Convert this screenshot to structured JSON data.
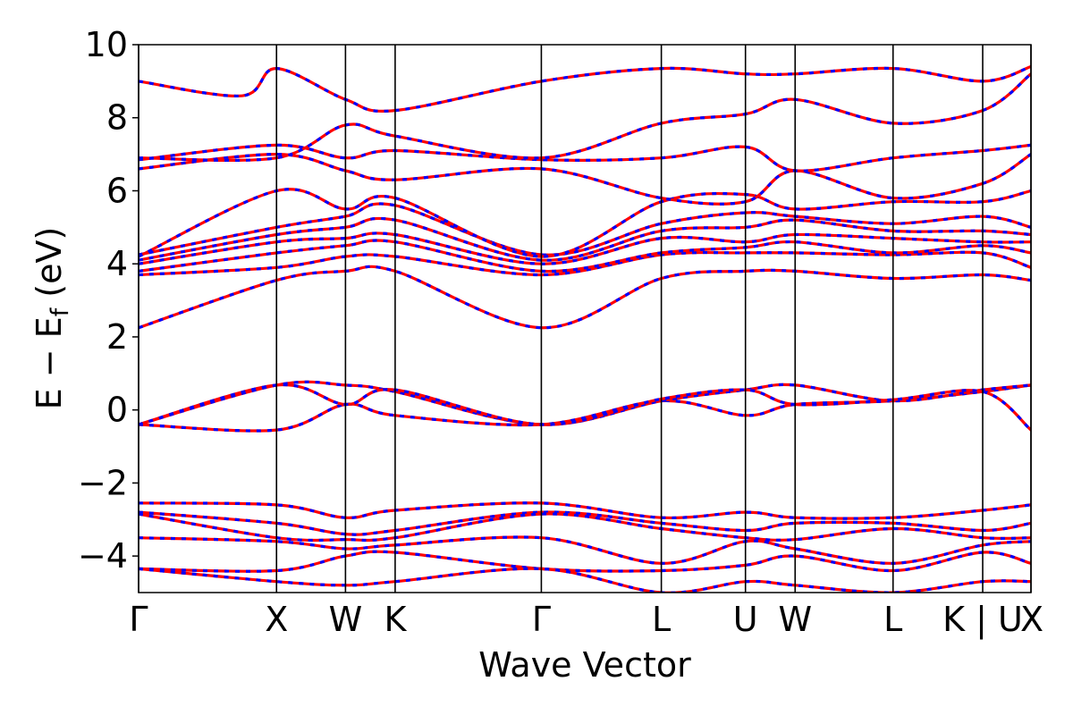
{
  "chart_data": {
    "type": "line",
    "xlabel": "Wave Vector",
    "ylabel_main": "E − E",
    "ylabel_sub": "f",
    "ylabel_unit": " (eV)",
    "ylim": [
      -5,
      10
    ],
    "yticks": [
      10,
      8,
      6,
      4,
      2,
      0,
      -2,
      -4
    ],
    "ytick_labels": [
      "10",
      "8",
      "6",
      "4",
      "2",
      "0",
      "−2",
      "−4"
    ],
    "xlim": [
      0,
      6.47
    ],
    "kpoints": [
      {
        "label": "Γ",
        "x": 0.0
      },
      {
        "label": "X",
        "x": 1.0
      },
      {
        "label": "W",
        "x": 1.5
      },
      {
        "label": "K",
        "x": 1.86
      },
      {
        "label": "Γ",
        "x": 2.92
      },
      {
        "label": "L",
        "x": 3.79
      },
      {
        "label": "U",
        "x": 4.4
      },
      {
        "label": "W",
        "x": 4.76
      },
      {
        "label": "L",
        "x": 5.47
      },
      {
        "label": "K | U",
        "x": 6.12
      },
      {
        "label": "X",
        "x": 6.47
      }
    ],
    "grid": false,
    "series_style": {
      "red": "#ff0000",
      "blue": "#0000ff"
    },
    "bands": [
      [
        [
          0,
          -0.4
        ],
        [
          1,
          -0.55
        ],
        [
          1.5,
          0.15
        ],
        [
          1.86,
          -0.15
        ],
        [
          2.92,
          -0.4
        ],
        [
          3.79,
          0.25
        ],
        [
          4.4,
          -0.15
        ],
        [
          4.76,
          0.15
        ],
        [
          5.47,
          0.25
        ],
        [
          6.12,
          0.5
        ],
        [
          6.47,
          0.68
        ]
      ],
      [
        [
          0,
          -0.4
        ],
        [
          1,
          0.68
        ],
        [
          1.5,
          0.68
        ],
        [
          1.86,
          0.5
        ],
        [
          2.92,
          -0.4
        ],
        [
          3.79,
          0.25
        ],
        [
          4.4,
          0.55
        ],
        [
          4.76,
          0.68
        ],
        [
          5.47,
          0.25
        ],
        [
          6.12,
          0.55
        ],
        [
          6.47,
          0.68
        ]
      ],
      [
        [
          0,
          -0.4
        ],
        [
          1,
          0.68
        ],
        [
          1.5,
          0.15
        ],
        [
          1.86,
          0.55
        ],
        [
          2.92,
          -0.4
        ],
        [
          3.79,
          0.3
        ],
        [
          4.4,
          0.55
        ],
        [
          4.76,
          0.15
        ],
        [
          5.47,
          0.28
        ],
        [
          6.12,
          0.5
        ],
        [
          6.47,
          -0.55
        ]
      ],
      [
        [
          0,
          2.25
        ],
        [
          1,
          3.55
        ],
        [
          1.5,
          3.8
        ],
        [
          1.86,
          3.8
        ],
        [
          2.92,
          2.25
        ],
        [
          3.79,
          3.6
        ],
        [
          4.4,
          3.8
        ],
        [
          4.76,
          3.8
        ],
        [
          5.47,
          3.6
        ],
        [
          6.12,
          3.7
        ],
        [
          6.47,
          3.55
        ]
      ],
      [
        [
          0,
          3.7
        ],
        [
          1,
          3.9
        ],
        [
          1.5,
          4.2
        ],
        [
          1.86,
          4.2
        ],
        [
          2.92,
          3.7
        ],
        [
          3.79,
          4.25
        ],
        [
          4.4,
          4.3
        ],
        [
          4.76,
          4.3
        ],
        [
          5.47,
          4.25
        ],
        [
          6.12,
          4.3
        ],
        [
          6.47,
          3.9
        ]
      ],
      [
        [
          0,
          3.8
        ],
        [
          1,
          4.3
        ],
        [
          1.5,
          4.5
        ],
        [
          1.86,
          4.6
        ],
        [
          2.92,
          3.8
        ],
        [
          3.79,
          4.3
        ],
        [
          4.4,
          4.45
        ],
        [
          4.76,
          4.6
        ],
        [
          5.47,
          4.3
        ],
        [
          6.12,
          4.5
        ],
        [
          6.47,
          4.3
        ]
      ],
      [
        [
          0,
          4.0
        ],
        [
          1,
          4.6
        ],
        [
          1.5,
          4.7
        ],
        [
          1.86,
          4.8
        ],
        [
          2.92,
          4.0
        ],
        [
          3.79,
          4.7
        ],
        [
          4.4,
          4.6
        ],
        [
          4.76,
          4.8
        ],
        [
          5.47,
          4.7
        ],
        [
          6.12,
          4.6
        ],
        [
          6.47,
          4.6
        ]
      ],
      [
        [
          0,
          4.1
        ],
        [
          1,
          4.8
        ],
        [
          1.5,
          5.0
        ],
        [
          1.86,
          5.2
        ],
        [
          2.92,
          4.1
        ],
        [
          3.79,
          4.9
        ],
        [
          4.4,
          5.0
        ],
        [
          4.76,
          5.2
        ],
        [
          5.47,
          4.9
        ],
        [
          6.12,
          4.9
        ],
        [
          6.47,
          4.8
        ]
      ],
      [
        [
          0,
          4.25
        ],
        [
          1,
          5.0
        ],
        [
          1.5,
          5.3
        ],
        [
          1.86,
          5.6
        ],
        [
          2.92,
          4.25
        ],
        [
          3.79,
          5.1
        ],
        [
          4.4,
          5.4
        ],
        [
          4.76,
          5.3
        ],
        [
          5.47,
          5.1
        ],
        [
          6.12,
          5.3
        ],
        [
          6.47,
          5.0
        ]
      ],
      [
        [
          0,
          4.2
        ],
        [
          1,
          6.0
        ],
        [
          1.5,
          5.5
        ],
        [
          1.86,
          5.8
        ],
        [
          2.92,
          4.2
        ],
        [
          3.79,
          5.7
        ],
        [
          4.4,
          5.9
        ],
        [
          4.76,
          5.5
        ],
        [
          5.47,
          5.7
        ],
        [
          6.12,
          5.7
        ],
        [
          6.47,
          6.0
        ]
      ],
      [
        [
          0,
          6.6
        ],
        [
          1,
          7.0
        ],
        [
          1.5,
          6.55
        ],
        [
          1.86,
          6.3
        ],
        [
          2.92,
          6.6
        ],
        [
          3.79,
          5.8
        ],
        [
          4.4,
          5.7
        ],
        [
          4.76,
          6.55
        ],
        [
          5.47,
          5.8
        ],
        [
          6.12,
          6.2
        ],
        [
          6.47,
          7.0
        ]
      ],
      [
        [
          0,
          6.85
        ],
        [
          1,
          7.25
        ],
        [
          1.5,
          6.9
        ],
        [
          1.86,
          7.1
        ],
        [
          2.92,
          6.85
        ],
        [
          3.79,
          6.9
        ],
        [
          4.4,
          7.2
        ],
        [
          4.76,
          6.55
        ],
        [
          5.47,
          6.9
        ],
        [
          6.12,
          7.1
        ],
        [
          6.47,
          7.25
        ]
      ],
      [
        [
          0,
          6.9
        ],
        [
          1,
          6.9
        ],
        [
          1.5,
          7.8
        ],
        [
          1.86,
          7.5
        ],
        [
          2.92,
          6.9
        ],
        [
          3.79,
          7.85
        ],
        [
          4.4,
          8.1
        ],
        [
          4.76,
          8.5
        ],
        [
          5.47,
          7.85
        ],
        [
          6.12,
          8.2
        ],
        [
          6.47,
          9.2
        ]
      ],
      [
        [
          0,
          9.0
        ],
        [
          0.75,
          8.6
        ],
        [
          1,
          9.35
        ],
        [
          1.5,
          8.5
        ],
        [
          1.86,
          8.2
        ],
        [
          2.92,
          9.0
        ],
        [
          3.79,
          9.35
        ],
        [
          4.4,
          9.2
        ],
        [
          4.76,
          9.2
        ],
        [
          5.47,
          9.35
        ],
        [
          6.12,
          9.0
        ],
        [
          6.47,
          9.4
        ]
      ],
      [
        [
          0,
          -2.55
        ],
        [
          1,
          -2.6
        ],
        [
          1.5,
          -2.95
        ],
        [
          1.86,
          -2.75
        ],
        [
          2.92,
          -2.55
        ],
        [
          3.79,
          -2.95
        ],
        [
          4.4,
          -2.8
        ],
        [
          4.76,
          -2.95
        ],
        [
          5.47,
          -2.95
        ],
        [
          6.12,
          -2.75
        ],
        [
          6.47,
          -2.6
        ]
      ],
      [
        [
          0,
          -2.8
        ],
        [
          1,
          -3.1
        ],
        [
          1.5,
          -3.4
        ],
        [
          1.86,
          -3.3
        ],
        [
          2.92,
          -2.8
        ],
        [
          3.79,
          -3.1
        ],
        [
          4.4,
          -3.3
        ],
        [
          4.76,
          -3.1
        ],
        [
          5.47,
          -3.1
        ],
        [
          6.12,
          -3.3
        ],
        [
          6.47,
          -3.1
        ]
      ],
      [
        [
          0,
          -2.85
        ],
        [
          1,
          -3.5
        ],
        [
          1.5,
          -3.55
        ],
        [
          1.86,
          -3.5
        ],
        [
          2.92,
          -2.85
        ],
        [
          3.79,
          -3.25
        ],
        [
          4.4,
          -3.5
        ],
        [
          4.76,
          -3.55
        ],
        [
          5.47,
          -3.25
        ],
        [
          6.12,
          -3.5
        ],
        [
          6.47,
          -3.5
        ]
      ],
      [
        [
          0,
          -3.5
        ],
        [
          1,
          -3.6
        ],
        [
          1.5,
          -3.8
        ],
        [
          1.86,
          -3.7
        ],
        [
          2.92,
          -3.5
        ],
        [
          3.79,
          -4.2
        ],
        [
          4.4,
          -3.6
        ],
        [
          4.76,
          -3.8
        ],
        [
          5.47,
          -4.2
        ],
        [
          6.12,
          -3.7
        ],
        [
          6.47,
          -3.6
        ]
      ],
      [
        [
          0,
          -4.35
        ],
        [
          1,
          -4.4
        ],
        [
          1.5,
          -4.0
        ],
        [
          1.86,
          -3.9
        ],
        [
          2.92,
          -4.35
        ],
        [
          3.79,
          -4.4
        ],
        [
          4.4,
          -4.25
        ],
        [
          4.76,
          -4.0
        ],
        [
          5.47,
          -4.4
        ],
        [
          6.12,
          -3.9
        ],
        [
          6.47,
          -4.2
        ]
      ],
      [
        [
          0,
          -4.35
        ],
        [
          1,
          -4.7
        ],
        [
          1.5,
          -4.8
        ],
        [
          1.86,
          -4.7
        ],
        [
          2.92,
          -4.35
        ],
        [
          3.79,
          -5.0
        ],
        [
          4.4,
          -4.7
        ],
        [
          4.76,
          -4.8
        ],
        [
          5.47,
          -5.0
        ],
        [
          6.12,
          -4.7
        ],
        [
          6.47,
          -4.7
        ]
      ]
    ]
  }
}
